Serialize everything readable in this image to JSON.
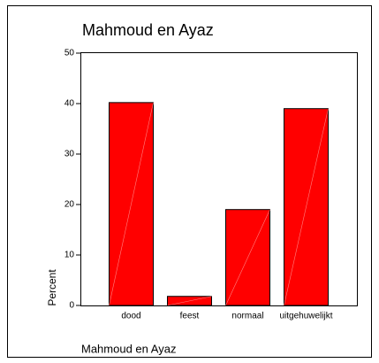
{
  "chart_data": {
    "type": "bar",
    "title": "Mahmoud en Ayaz",
    "x_label": "Mahmoud en Ayaz",
    "y_label": "Percent",
    "categories": [
      "dood",
      "feest",
      "normaal",
      "uitgehuwelijkt"
    ],
    "values": [
      40.2,
      1.8,
      19,
      39
    ],
    "color": "#ff0000",
    "ylim": [
      0,
      50
    ],
    "yticks": [
      0,
      10,
      20,
      30,
      40,
      50
    ],
    "grid": false
  }
}
